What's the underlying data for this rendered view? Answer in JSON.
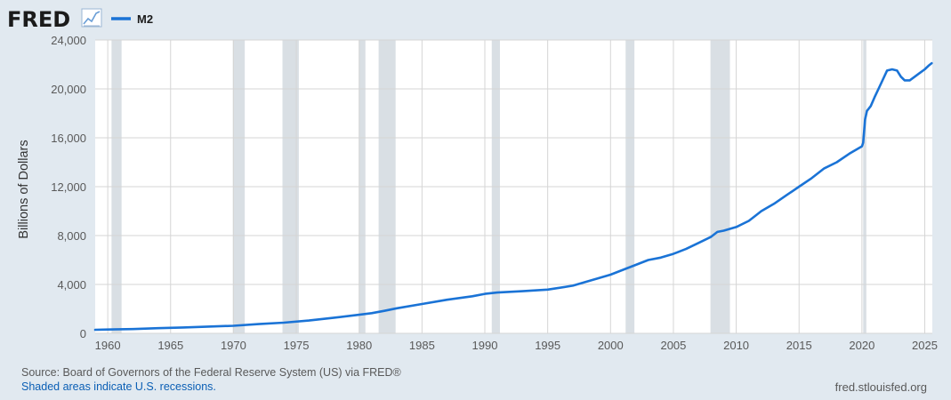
{
  "branding": {
    "logo_text": "FRED",
    "logo_icon": "trend-line-icon"
  },
  "footer": {
    "source": "Source: Board of Governors of the Federal Reserve System (US) via FRED®",
    "note": "Shaded areas indicate U.S. recessions.",
    "site": "fred.stlouisfed.org"
  },
  "colors": {
    "background": "#e1e9f0",
    "plot_bg": "#ffffff",
    "series": "#1a73d6",
    "recession": "#d9dfe4",
    "grid": "#d5d5d5",
    "logo": "#1b1b1b"
  },
  "chart_data": {
    "type": "line",
    "title": "",
    "xlabel": "",
    "ylabel": "Billions of Dollars",
    "legend_placement": "top-left",
    "grid": true,
    "xlim": [
      1959,
      2025.6
    ],
    "ylim": [
      0,
      24000
    ],
    "x_ticks": [
      1960,
      1965,
      1970,
      1975,
      1980,
      1985,
      1990,
      1995,
      2000,
      2005,
      2010,
      2015,
      2020,
      2025
    ],
    "y_ticks": [
      0,
      4000,
      8000,
      12000,
      16000,
      20000,
      24000
    ],
    "y_tick_labels": [
      "0",
      "4,000",
      "8,000",
      "12,000",
      "16,000",
      "20,000",
      "24,000"
    ],
    "recessions": [
      [
        1960.3,
        1961.1
      ],
      [
        1969.95,
        1970.9
      ],
      [
        1973.9,
        1975.2
      ],
      [
        1980.0,
        1980.5
      ],
      [
        1981.55,
        1982.9
      ],
      [
        1990.55,
        1991.2
      ],
      [
        2001.2,
        2001.9
      ],
      [
        2007.95,
        2009.5
      ],
      [
        2020.1,
        2020.35
      ]
    ],
    "series": [
      {
        "name": "M2",
        "x": [
          1959.0,
          1960.0,
          1962.0,
          1964.0,
          1966.0,
          1968.0,
          1970.0,
          1972.0,
          1974.0,
          1976.0,
          1978.0,
          1980.0,
          1981.0,
          1982.0,
          1983.0,
          1985.0,
          1987.0,
          1989.0,
          1990.0,
          1991.0,
          1993.0,
          1995.0,
          1997.0,
          1998.0,
          1999.0,
          2000.0,
          2001.0,
          2002.0,
          2003.0,
          2004.0,
          2005.0,
          2006.0,
          2007.0,
          2008.0,
          2008.5,
          2009.0,
          2010.0,
          2011.0,
          2011.5,
          2012.0,
          2013.0,
          2014.0,
          2015.0,
          2016.0,
          2017.0,
          2018.0,
          2019.0,
          2020.0,
          2020.1,
          2020.25,
          2020.4,
          2020.7,
          2021.0,
          2021.5,
          2022.0,
          2022.4,
          2022.8,
          2023.1,
          2023.4,
          2023.8,
          2024.2,
          2024.6,
          2025.0,
          2025.3,
          2025.55
        ],
        "y": [
          290,
          310,
          350,
          420,
          480,
          550,
          620,
          760,
          870,
          1050,
          1280,
          1520,
          1650,
          1840,
          2050,
          2400,
          2750,
          3030,
          3230,
          3340,
          3450,
          3580,
          3900,
          4200,
          4500,
          4800,
          5200,
          5600,
          6000,
          6200,
          6500,
          6900,
          7400,
          7900,
          8300,
          8400,
          8700,
          9200,
          9600,
          10000,
          10600,
          11300,
          12000,
          12700,
          13500,
          14000,
          14700,
          15300,
          15600,
          17500,
          18200,
          18600,
          19300,
          20400,
          21500,
          21600,
          21500,
          21000,
          20700,
          20700,
          21000,
          21300,
          21600,
          21900,
          22100
        ]
      }
    ]
  }
}
